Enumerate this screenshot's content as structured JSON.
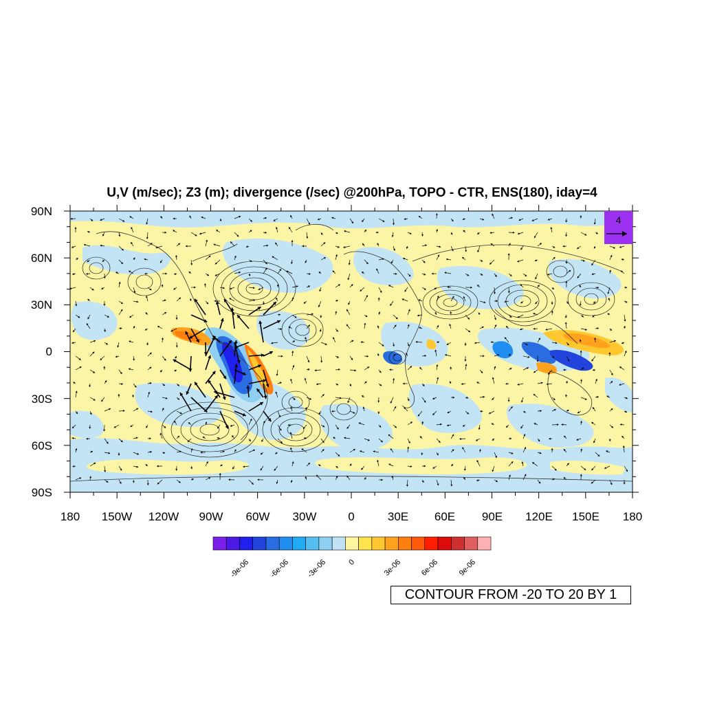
{
  "title": "U,V (m/sec); Z3 (m); divergence (/sec) @200hPa, TOPO - CTR, ENS(180), iday=4",
  "x_ticks": [
    "180",
    "150W",
    "120W",
    "90W",
    "60W",
    "30W",
    "0",
    "30E",
    "60E",
    "90E",
    "120E",
    "150E",
    "180"
  ],
  "y_ticks": [
    "90N",
    "60N",
    "30N",
    "0",
    "30S",
    "60S",
    "90S"
  ],
  "reference_vector": {
    "label": "4",
    "fill": "#9b30f0"
  },
  "contour_note": "CONTOUR FROM -20 TO 20 BY 1",
  "colorbar": {
    "colors": [
      "#7a20e8",
      "#4b1be3",
      "#2020ee",
      "#2244dd",
      "#2a6de0",
      "#1f8ef0",
      "#22aaf2",
      "#55bff0",
      "#8fd0f2",
      "#bfe3f5",
      "#fff4a0",
      "#ffe44d",
      "#ffc830",
      "#ffa21e",
      "#ff7e10",
      "#ff5a0a",
      "#ff1e00",
      "#dd0c0c",
      "#cc3030",
      "#e06060",
      "#ffb0b0"
    ],
    "labels": [
      "-9e-06",
      "-6e-06",
      "-3e-06",
      "0",
      "3e-06",
      "6e-06",
      "9e-06"
    ]
  },
  "colors": {
    "positive_fill": "#fdf5a6",
    "negative_fill": "#c3e4f4"
  }
}
